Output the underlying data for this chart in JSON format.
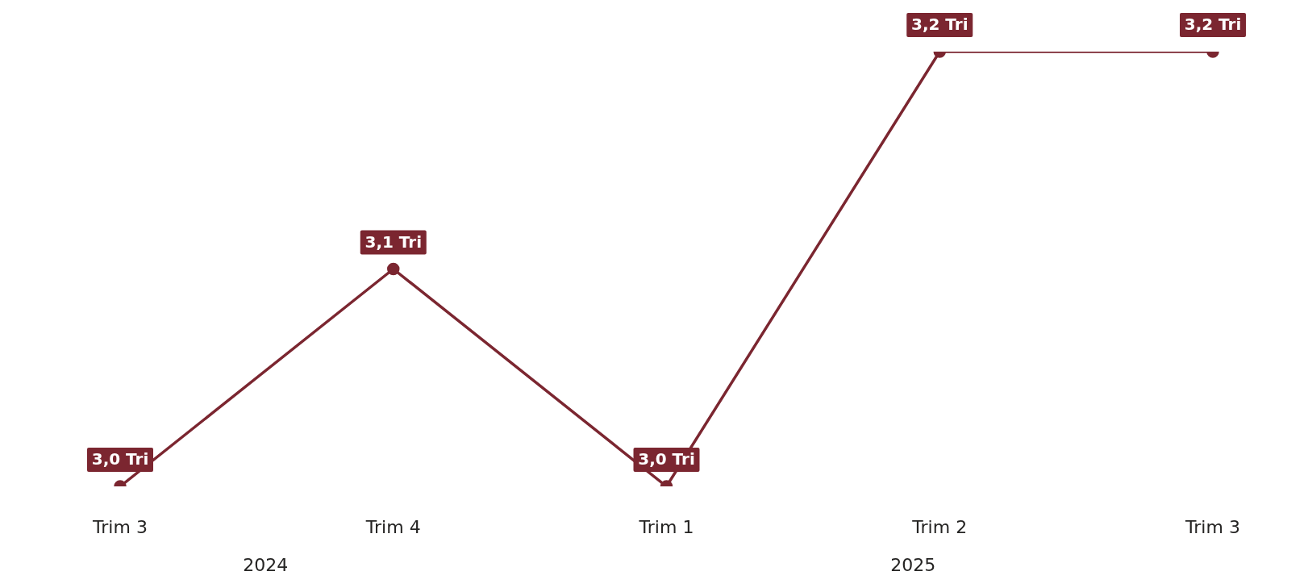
{
  "chart_data": {
    "type": "line",
    "categories": [
      "Trim 3",
      "Trim 4",
      "Trim 1",
      "Trim 2",
      "Trim 3"
    ],
    "series": [
      {
        "color": "#7b2630",
        "values": [
          3.0,
          3.1,
          3.0,
          3.2,
          3.2
        ],
        "value_labels": [
          "3,0 Tri",
          "3,1 Tri",
          "3,0 Tri",
          "3,2 Tri",
          "3,2 Tri"
        ]
      }
    ],
    "marker": "circle",
    "line_style": "solid",
    "annotations": [
      "2024",
      "2025"
    ]
  }
}
